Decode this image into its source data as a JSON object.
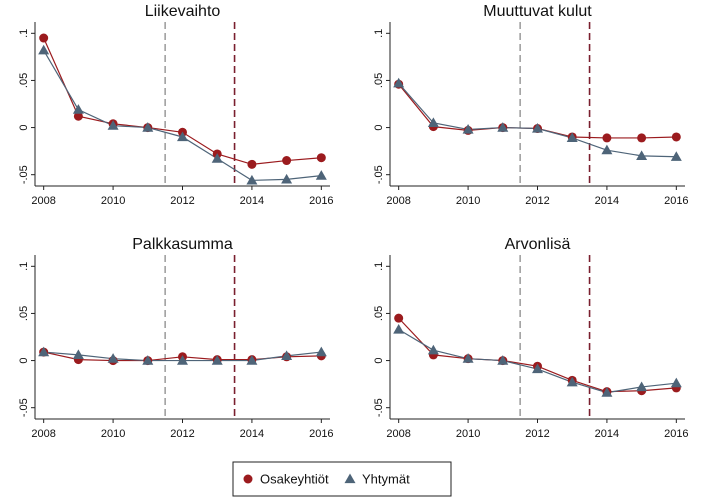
{
  "chart_data": [
    {
      "type": "line",
      "title": "Liikevaihto",
      "x": [
        2008,
        2009,
        2010,
        2011,
        2012,
        2013,
        2014,
        2015,
        2016
      ],
      "series": [
        {
          "name": "Osakeyhtiöt",
          "color": "#9b1b1e",
          "marker": "circle",
          "values": [
            0.095,
            0.012,
            0.004,
            0,
            -0.005,
            -0.028,
            -0.039,
            -0.035,
            -0.032
          ]
        },
        {
          "name": "Yhtymät",
          "color": "#4e6478",
          "marker": "triangle",
          "values": [
            0.082,
            0.019,
            0.002,
            0,
            -0.01,
            -0.033,
            -0.056,
            -0.055,
            -0.051
          ]
        }
      ],
      "xlim": [
        2007.75,
        2016.25
      ],
      "xticks": [
        2008,
        2010,
        2012,
        2014,
        2016
      ],
      "ylim": [
        -0.062,
        0.112
      ],
      "yticks": [
        {
          "value": -0.05,
          "label": "-.05"
        },
        0,
        {
          "value": 0.05,
          "label": ".05"
        },
        {
          "value": 0.1,
          "label": ".1"
        }
      ],
      "reference_lines": [
        {
          "x": 2011.5,
          "color": "#a0a0a0"
        },
        {
          "x": 2013.5,
          "color": "#7a1f2e"
        }
      ]
    },
    {
      "type": "line",
      "title": "Muuttuvat kulut",
      "x": [
        2008,
        2009,
        2010,
        2011,
        2012,
        2013,
        2014,
        2015,
        2016
      ],
      "series": [
        {
          "name": "Osakeyhtiöt",
          "color": "#9b1b1e",
          "marker": "circle",
          "values": [
            0.046,
            0.001,
            -0.003,
            0,
            -0.001,
            -0.01,
            -0.011,
            -0.011,
            -0.01
          ]
        },
        {
          "name": "Yhtymät",
          "color": "#4e6478",
          "marker": "triangle",
          "values": [
            0.047,
            0.005,
            -0.002,
            0,
            -0.001,
            -0.011,
            -0.024,
            -0.03,
            -0.031
          ]
        }
      ],
      "xlim": [
        2007.75,
        2016.25
      ],
      "xticks": [
        2008,
        2010,
        2012,
        2014,
        2016
      ],
      "ylim": [
        -0.062,
        0.112
      ],
      "yticks": [
        {
          "value": -0.05,
          "label": "-.05"
        },
        0,
        {
          "value": 0.05,
          "label": ".05"
        },
        {
          "value": 0.1,
          "label": ".1"
        }
      ],
      "reference_lines": [
        {
          "x": 2011.5,
          "color": "#a0a0a0"
        },
        {
          "x": 2013.5,
          "color": "#7a1f2e"
        }
      ]
    },
    {
      "type": "line",
      "title": "Palkkasumma",
      "x": [
        2008,
        2009,
        2010,
        2011,
        2012,
        2013,
        2014,
        2015,
        2016
      ],
      "series": [
        {
          "name": "Osakeyhtiöt",
          "color": "#9b1b1e",
          "marker": "circle",
          "values": [
            0.009,
            0.001,
            0,
            0,
            0.004,
            0.001,
            0.001,
            0.004,
            0.005
          ]
        },
        {
          "name": "Yhtymät",
          "color": "#4e6478",
          "marker": "triangle",
          "values": [
            0.009,
            0.006,
            0.002,
            0,
            0,
            0,
            0,
            0.005,
            0.009
          ]
        }
      ],
      "xlim": [
        2007.75,
        2016.25
      ],
      "xticks": [
        2008,
        2010,
        2012,
        2014,
        2016
      ],
      "ylim": [
        -0.062,
        0.112
      ],
      "yticks": [
        {
          "value": -0.05,
          "label": "-.05"
        },
        0,
        {
          "value": 0.05,
          "label": ".05"
        },
        {
          "value": 0.1,
          "label": ".1"
        }
      ],
      "reference_lines": [
        {
          "x": 2011.5,
          "color": "#a0a0a0"
        },
        {
          "x": 2013.5,
          "color": "#7a1f2e"
        }
      ]
    },
    {
      "type": "line",
      "title": "Arvonlisä",
      "x": [
        2008,
        2009,
        2010,
        2011,
        2012,
        2013,
        2014,
        2015,
        2016
      ],
      "series": [
        {
          "name": "Osakeyhtiöt",
          "color": "#9b1b1e",
          "marker": "circle",
          "values": [
            0.045,
            0.006,
            0.002,
            0,
            -0.006,
            -0.021,
            -0.033,
            -0.032,
            -0.029
          ]
        },
        {
          "name": "Yhtymät",
          "color": "#4e6478",
          "marker": "triangle",
          "values": [
            0.033,
            0.011,
            0.002,
            0,
            -0.009,
            -0.023,
            -0.034,
            -0.028,
            -0.024
          ]
        }
      ],
      "xlim": [
        2007.75,
        2016.25
      ],
      "xticks": [
        2008,
        2010,
        2012,
        2014,
        2016
      ],
      "ylim": [
        -0.062,
        0.112
      ],
      "yticks": [
        {
          "value": -0.05,
          "label": "-.05"
        },
        0,
        {
          "value": 0.05,
          "label": ".05"
        },
        {
          "value": 0.1,
          "label": ".1"
        }
      ],
      "reference_lines": [
        {
          "x": 2011.5,
          "color": "#a0a0a0"
        },
        {
          "x": 2013.5,
          "color": "#7a1f2e"
        }
      ]
    }
  ]
}
